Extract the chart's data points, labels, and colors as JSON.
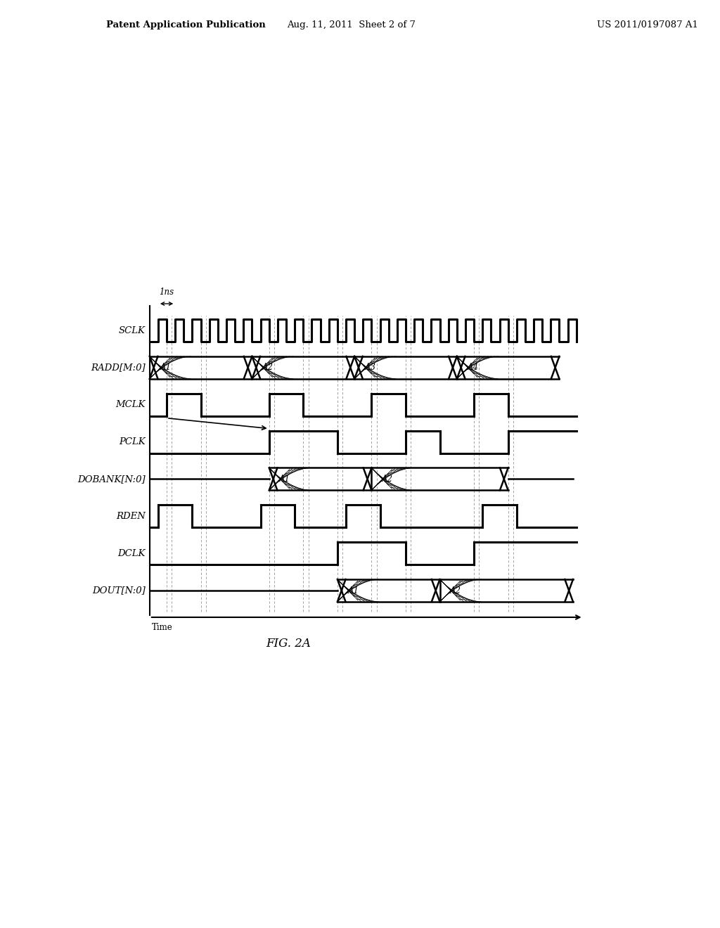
{
  "patent_header_left": "Patent Application Publication",
  "patent_header_mid": "Aug. 11, 2011  Sheet 2 of 7",
  "patent_header_right": "US 2011/0197087 A1",
  "time_label": "Time",
  "annotation_1ns": "1ns",
  "signals": [
    "SCLK",
    "RADD[M:0]",
    "MCLK",
    "PCLK",
    "DOBANK[N:0]",
    "RDEN",
    "DCLK",
    "DOUT[N:0]"
  ],
  "bg_color": "#ffffff",
  "line_color": "#000000",
  "grid_color": "#888888",
  "fig_caption": "FIG. 2A"
}
